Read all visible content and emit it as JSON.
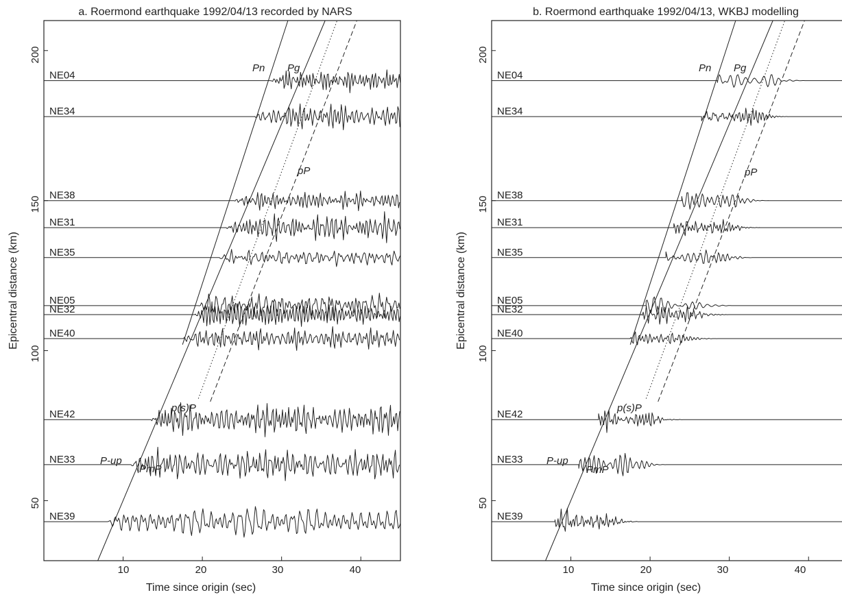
{
  "chart_data": [
    {
      "type": "line",
      "title": "a. Roermond earthquake 1992/04/13 recorded by NARS",
      "xlabel": "Time since origin (sec)",
      "ylabel": "Epicentral distance (km)",
      "xlim": [
        0,
        45
      ],
      "ylim": [
        30,
        210
      ],
      "xticks": [
        "10",
        "20",
        "30",
        "40"
      ],
      "yticks": [
        "50",
        "100",
        "150",
        "200"
      ],
      "grid": false,
      "stations": [
        {
          "name": "NE04",
          "distance": 190,
          "onset": 28.5
        },
        {
          "name": "NE34",
          "distance": 178,
          "onset": 26.5
        },
        {
          "name": "NE38",
          "distance": 150,
          "onset": 24.0
        },
        {
          "name": "NE31",
          "distance": 141,
          "onset": 23.0
        },
        {
          "name": "NE35",
          "distance": 131,
          "onset": 22.0
        },
        {
          "name": "NE05",
          "distance": 115,
          "onset": 19.5
        },
        {
          "name": "NE32",
          "distance": 112,
          "onset": 19.0
        },
        {
          "name": "NE40",
          "distance": 104,
          "onset": 17.5
        },
        {
          "name": "NE42",
          "distance": 77,
          "onset": 13.5
        },
        {
          "name": "NE33",
          "distance": 62,
          "onset": 11.0
        },
        {
          "name": "NE39",
          "distance": 43,
          "onset": 8.0
        }
      ],
      "phases": [
        {
          "name": "Pn",
          "style": "solid",
          "points": [
            [
              17.5,
              102
            ],
            [
              30.8,
              210
            ]
          ]
        },
        {
          "name": "Pg",
          "style": "solid",
          "points": [
            [
              6.8,
              30
            ],
            [
              35.5,
              210
            ]
          ]
        },
        {
          "name": "p(s)P",
          "style": "dotted",
          "points": [
            [
              19.5,
              84
            ],
            [
              37.0,
              210
            ]
          ]
        },
        {
          "name": "pP",
          "style": "dashed",
          "points": [
            [
              21.0,
              83
            ],
            [
              39.5,
              210
            ]
          ]
        }
      ],
      "phase_labels": [
        "Pn",
        "Pg",
        "pP",
        "p(s)P",
        "P-up",
        "PmP"
      ]
    },
    {
      "type": "line",
      "title": "b. Roermond earthquake 1992/04/13, WKBJ modelling",
      "xlabel": "Time since origin (sec)",
      "ylabel": "Epicentral distance (km)",
      "xlim": [
        0,
        45
      ],
      "ylim": [
        30,
        210
      ],
      "xticks": [
        "10",
        "20",
        "30",
        "40"
      ],
      "yticks": [
        "50",
        "100",
        "150",
        "200"
      ],
      "grid": false,
      "stations": [
        {
          "name": "NE04",
          "distance": 190,
          "onset": 28.5
        },
        {
          "name": "NE34",
          "distance": 178,
          "onset": 26.5
        },
        {
          "name": "NE38",
          "distance": 150,
          "onset": 24.0
        },
        {
          "name": "NE31",
          "distance": 141,
          "onset": 23.0
        },
        {
          "name": "NE35",
          "distance": 131,
          "onset": 22.0
        },
        {
          "name": "NE05",
          "distance": 115,
          "onset": 19.5
        },
        {
          "name": "NE32",
          "distance": 112,
          "onset": 19.0
        },
        {
          "name": "NE40",
          "distance": 104,
          "onset": 17.5
        },
        {
          "name": "NE42",
          "distance": 77,
          "onset": 13.5
        },
        {
          "name": "NE33",
          "distance": 62,
          "onset": 11.0
        },
        {
          "name": "NE39",
          "distance": 43,
          "onset": 8.0
        }
      ],
      "phases": [
        {
          "name": "Pn",
          "style": "solid",
          "points": [
            [
              17.5,
              102
            ],
            [
              30.8,
              210
            ]
          ]
        },
        {
          "name": "Pg",
          "style": "solid",
          "points": [
            [
              6.8,
              30
            ],
            [
              35.5,
              210
            ]
          ]
        },
        {
          "name": "p(s)P",
          "style": "dotted",
          "points": [
            [
              19.5,
              84
            ],
            [
              37.0,
              210
            ]
          ]
        },
        {
          "name": "pP",
          "style": "dashed",
          "points": [
            [
              21.0,
              83
            ],
            [
              39.5,
              210
            ]
          ]
        }
      ],
      "phase_labels": [
        "Pn",
        "Pg",
        "pP",
        "p(s)P",
        "P-up",
        "PmP"
      ]
    }
  ]
}
